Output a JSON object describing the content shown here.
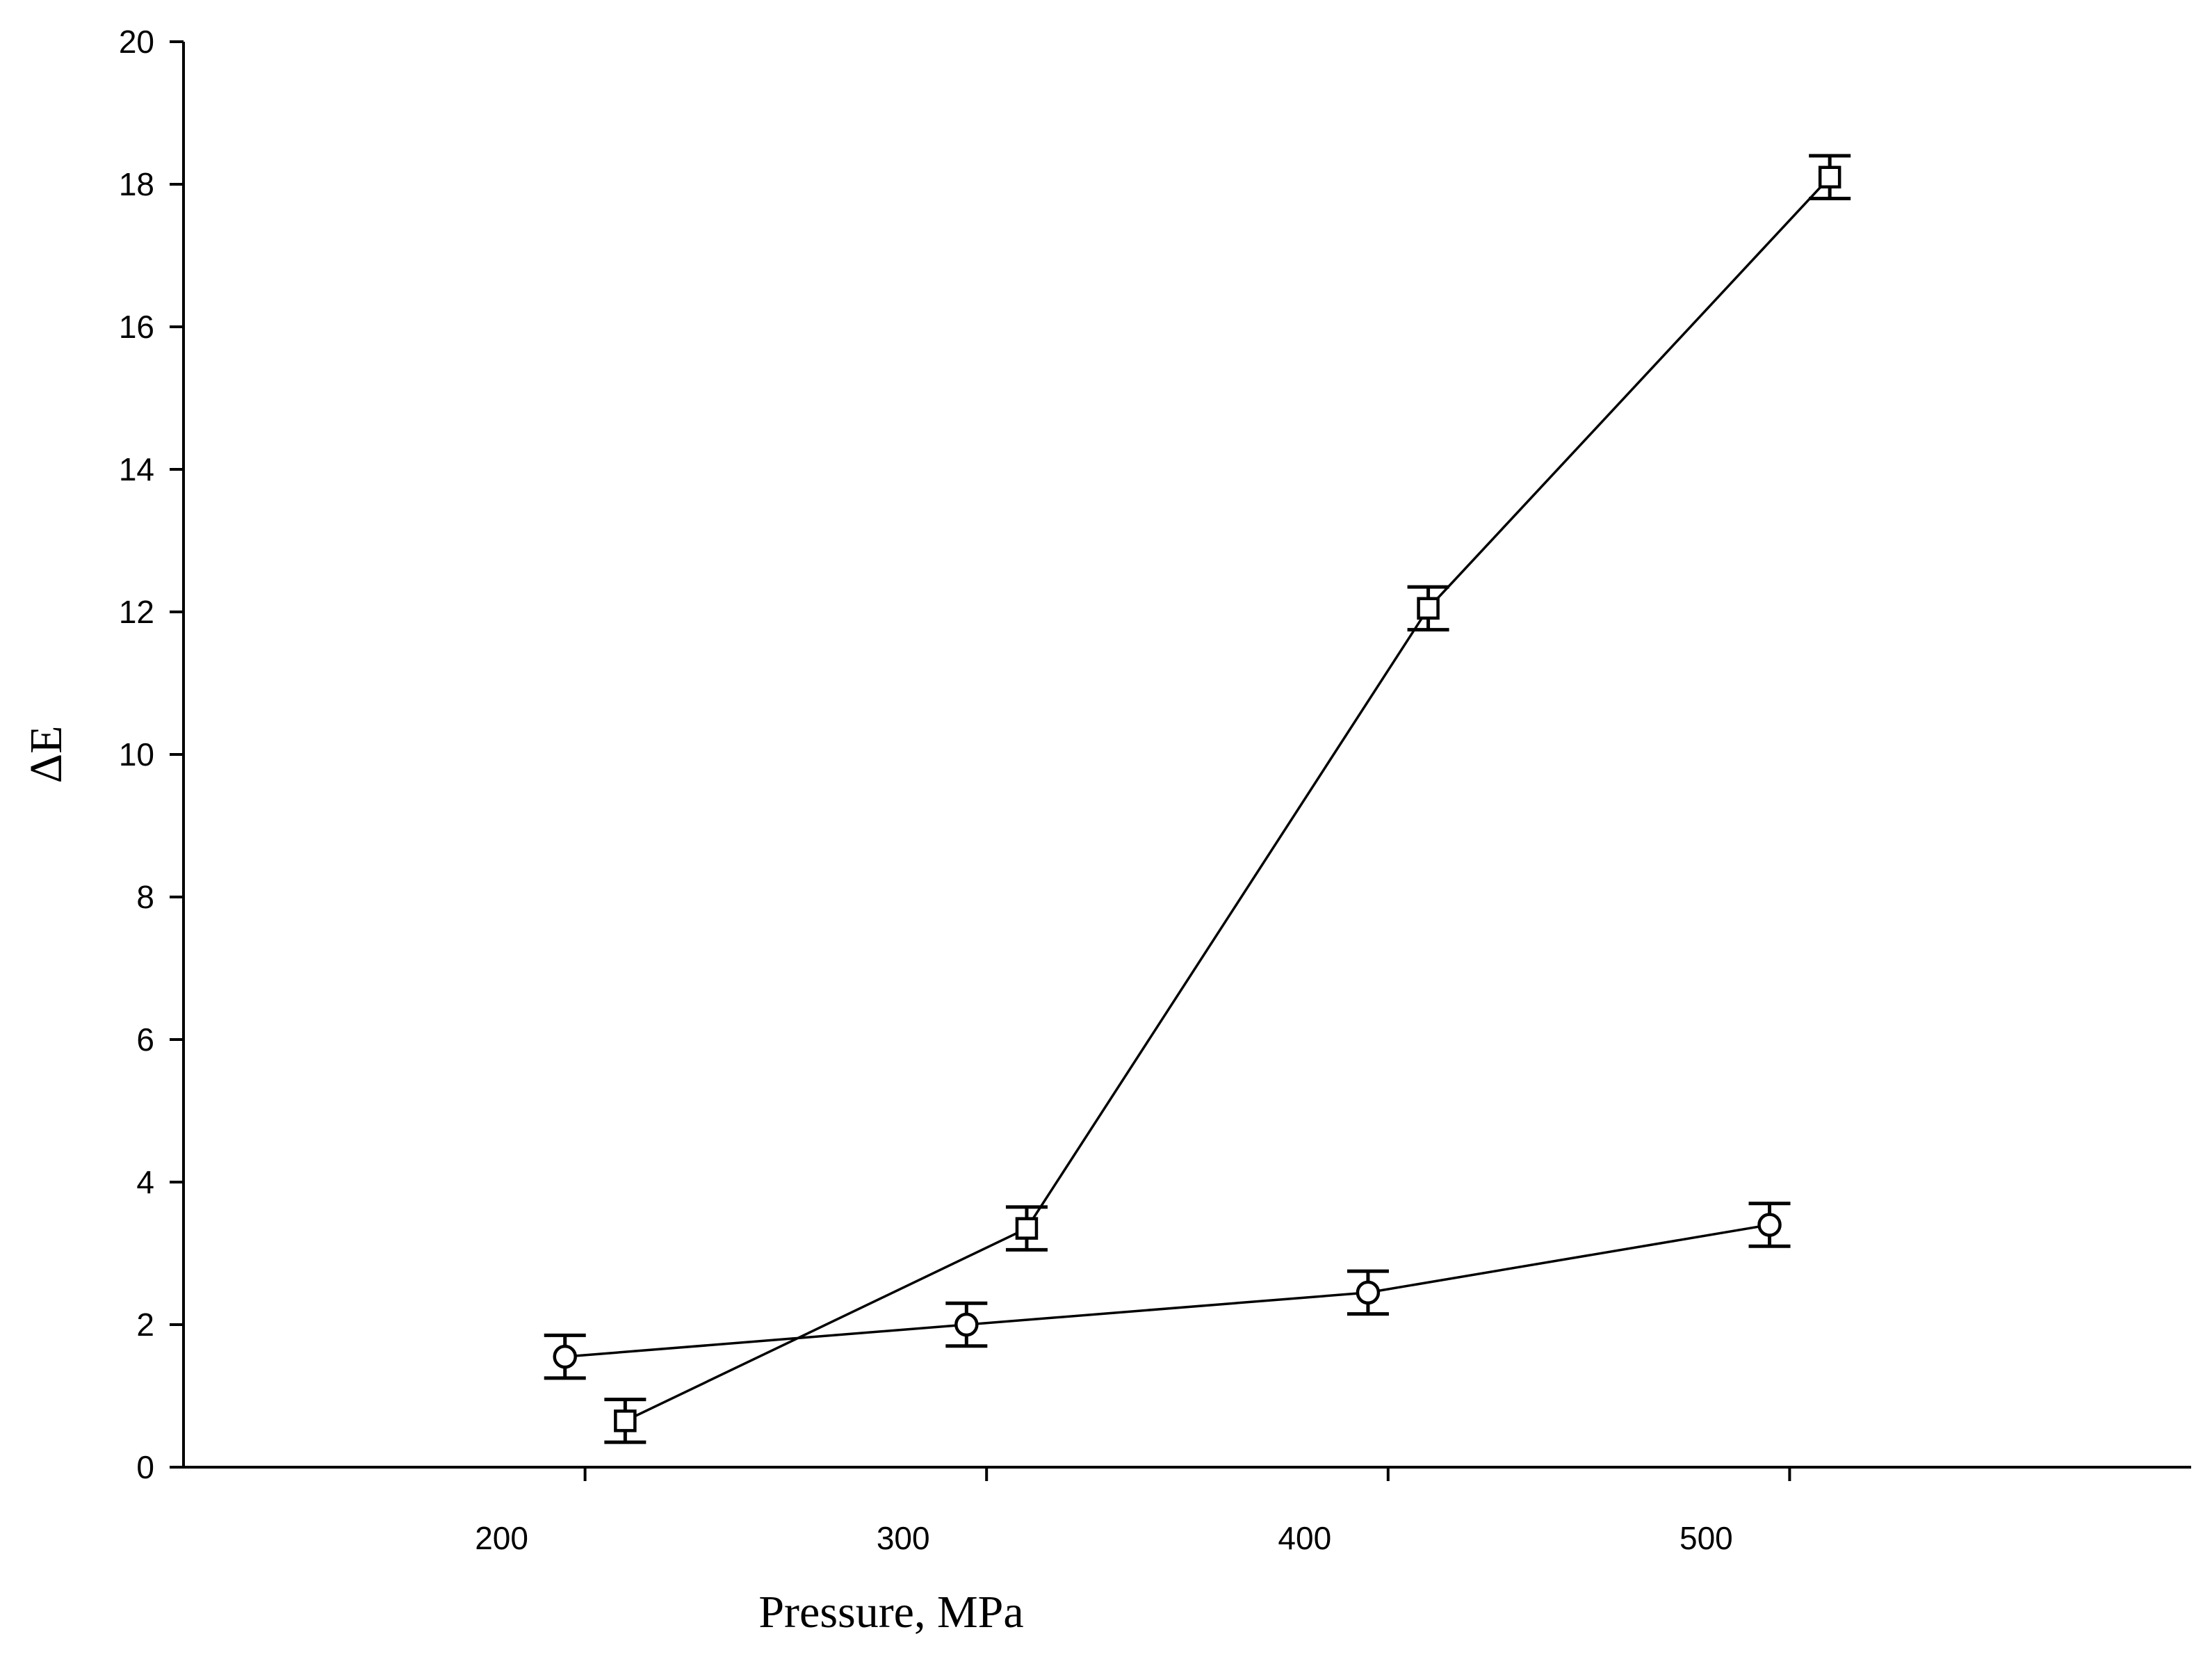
{
  "chart_data": {
    "type": "line",
    "title": "",
    "xlabel": "Pressure, MPa",
    "ylabel": "ΔE",
    "xlim": [
      100,
      600
    ],
    "ylim": [
      0,
      20
    ],
    "x_ticks": [
      200,
      300,
      400,
      500
    ],
    "y_ticks": [
      0,
      2,
      4,
      6,
      8,
      10,
      12,
      14,
      16,
      18,
      20
    ],
    "grid": false,
    "legend": "none",
    "series": [
      {
        "marker": "square",
        "x": [
          210,
          310,
          410,
          510
        ],
        "y": [
          0.65,
          3.35,
          12.05,
          18.1
        ],
        "error": [
          0.3,
          0.3,
          0.3,
          0.3
        ]
      },
      {
        "marker": "circle",
        "x": [
          195,
          295,
          395,
          495
        ],
        "y": [
          1.55,
          2.0,
          2.45,
          3.4
        ],
        "error": [
          0.3,
          0.3,
          0.3,
          0.3
        ]
      }
    ]
  }
}
